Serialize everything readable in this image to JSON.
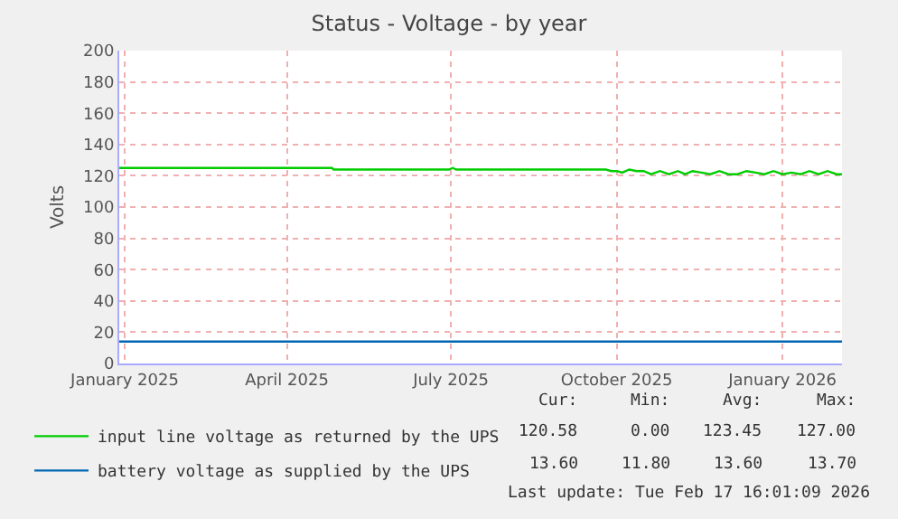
{
  "chart_data": {
    "type": "line",
    "title": "Status - Voltage - by year",
    "ylabel": "Volts",
    "xlim": [
      "2024-12-29",
      "2026-02-03"
    ],
    "xticks": [
      {
        "value": "2025-01-01",
        "label": "January 2025"
      },
      {
        "value": "2025-04-01",
        "label": "April 2025"
      },
      {
        "value": "2025-07-01",
        "label": "July 2025"
      },
      {
        "value": "2025-10-01",
        "label": "October 2025"
      },
      {
        "value": "2026-01-01",
        "label": "January 2026"
      }
    ],
    "ylim": [
      0,
      200
    ],
    "yticks": [
      0,
      20,
      40,
      60,
      80,
      100,
      120,
      140,
      160,
      180,
      200
    ],
    "grid": true,
    "legend": "bottom left",
    "series": [
      {
        "name": "input line voltage as returned by the UPS",
        "color": "#00cc00",
        "x": [
          "2024-12-29",
          "2025-04-26",
          "2025-04-27",
          "2025-06-30",
          "2025-07-02",
          "2025-07-04",
          "2025-09-25",
          "2025-09-28",
          "2025-10-01",
          "2025-10-04",
          "2025-10-08",
          "2025-10-12",
          "2025-10-16",
          "2025-10-20",
          "2025-10-25",
          "2025-10-30",
          "2025-11-04",
          "2025-11-08",
          "2025-11-12",
          "2025-11-17",
          "2025-11-22",
          "2025-11-27",
          "2025-12-02",
          "2025-12-07",
          "2025-12-12",
          "2025-12-17",
          "2025-12-22",
          "2025-12-27",
          "2026-01-01",
          "2026-01-06",
          "2026-01-11",
          "2026-01-16",
          "2026-01-21",
          "2026-01-26",
          "2026-01-31",
          "2026-02-03"
        ],
        "values": [
          125,
          125,
          124,
          124,
          125,
          124,
          124,
          123,
          123,
          122,
          124,
          123,
          123,
          121,
          123,
          121,
          123,
          121,
          123,
          122,
          121,
          123,
          121,
          121,
          123,
          122,
          121,
          123,
          121,
          122,
          121,
          123,
          121,
          123,
          121,
          121
        ]
      },
      {
        "name": "battery voltage as supplied by the UPS",
        "color": "#0066b3",
        "x": [
          "2024-12-29",
          "2026-02-03"
        ],
        "values": [
          14,
          14
        ]
      }
    ],
    "annotations": [
      "Cur:",
      "Min:",
      "Avg:",
      "Max:",
      "120.58",
      "0.00",
      "123.45",
      "127.00",
      "13.60",
      "11.80",
      "13.60",
      "13.70",
      "Last update: Tue Feb 17 16:01:09 2026"
    ]
  }
}
